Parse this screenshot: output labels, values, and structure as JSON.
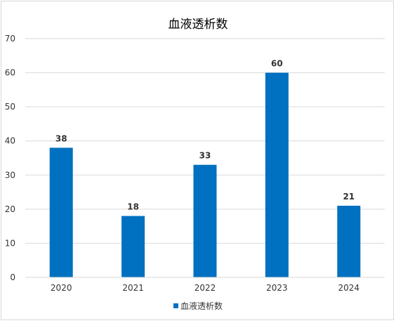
{
  "chart_data": {
    "type": "bar",
    "title": "血液透析数",
    "categories": [
      "2020",
      "2021",
      "2022",
      "2023",
      "2024"
    ],
    "series": [
      {
        "name": "血液透析数",
        "values": [
          38,
          18,
          33,
          60,
          21
        ]
      }
    ],
    "ylim": [
      0,
      70
    ],
    "yticks": [
      0,
      10,
      20,
      30,
      40,
      50,
      60,
      70
    ],
    "xlabel": "",
    "ylabel": "",
    "grid": true,
    "legend_position": "bottom",
    "data_labels": true,
    "colors": {
      "bar": "#0070C0",
      "grid": "#d9d9d9",
      "axis_text": "#333333",
      "label_text": "#333333"
    }
  }
}
